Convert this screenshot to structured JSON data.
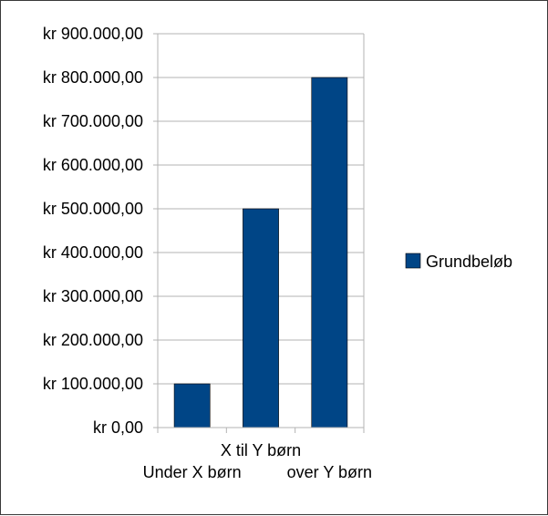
{
  "chart_data": {
    "type": "bar",
    "categories": [
      "Under X børn",
      "X til Y børn",
      "over Y børn"
    ],
    "series": [
      {
        "name": "Grundbeløb",
        "values": [
          100000,
          500000,
          800000
        ],
        "color": "#004586"
      }
    ],
    "ylim": [
      0,
      900000
    ],
    "y_ticks": [
      0,
      100000,
      200000,
      300000,
      400000,
      500000,
      600000,
      700000,
      800000,
      900000
    ],
    "y_tick_labels": [
      "kr 0,00",
      "kr 100.000,00",
      "kr 200.000,00",
      "kr 300.000,00",
      "kr 400.000,00",
      "kr 500.000,00",
      "kr 600.000,00",
      "kr 700.000,00",
      "kr 800.000,00",
      "kr 900.000,00"
    ],
    "grid": true,
    "grid_color": "#b3b3b3",
    "legend": {
      "position": "right",
      "entries": [
        "Grundbeløb"
      ]
    }
  }
}
